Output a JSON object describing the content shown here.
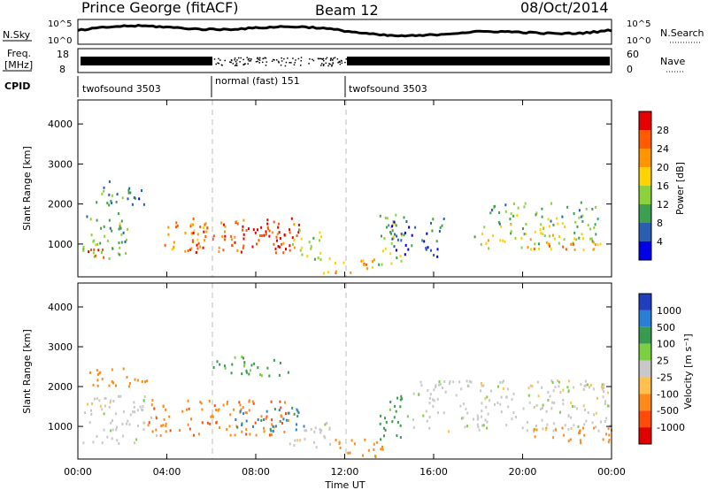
{
  "header": {
    "station": "Prince George (fitACF)",
    "beam": "Beam 12",
    "date": "08/Oct/2014"
  },
  "summary_panels": {
    "nsky": {
      "label": "N.Sky",
      "ticks": [
        "10^5",
        "10^0"
      ],
      "right_label": "N.Search",
      "right_ticks": [
        "10^5",
        "10^0"
      ]
    },
    "freq": {
      "label_lines": [
        "Freq.",
        "[MHz]"
      ],
      "ticks": [
        "18",
        "8"
      ],
      "right_label": "Nave",
      "right_ticks": [
        "60",
        "0"
      ]
    },
    "cpid": {
      "label": "CPID",
      "segments": [
        {
          "name": "twofsound 3503",
          "start_hour": 0
        },
        {
          "name": "normal (fast) 151",
          "start_hour": 6
        },
        {
          "name": "twofsound 3503",
          "start_hour": 12
        }
      ]
    }
  },
  "x_axis": {
    "label": "Time UT",
    "ticks": [
      "00:00",
      "04:00",
      "08:00",
      "12:00",
      "16:00",
      "20:00",
      "00:00"
    ],
    "tick_hours": [
      0,
      4,
      8,
      12,
      16,
      20,
      24
    ]
  },
  "chart_data": [
    {
      "type": "heatmap",
      "ylabel": "Slant Range [km]",
      "y_ticks": [
        1000,
        2000,
        3000,
        4000
      ],
      "ylim": [
        180,
        4600
      ],
      "xlim_hours": [
        0,
        24
      ],
      "colorbar": {
        "label": "Power [dB]",
        "ticks": [
          "28",
          "24",
          "20",
          "16",
          "12",
          "8",
          "4"
        ],
        "colors": [
          "#e60000",
          "#ff5a00",
          "#ff9600",
          "#ffd200",
          "#8cd23c",
          "#3ca050",
          "#2a5fb0",
          "#0000e6"
        ]
      },
      "regions": [
        {
          "t0": 0.2,
          "t1": 2.2,
          "r0": 550,
          "r1": 1800,
          "v": 12
        },
        {
          "t0": 0.3,
          "t1": 1.5,
          "r0": 650,
          "r1": 1000,
          "v": 26
        },
        {
          "t0": 0.5,
          "t1": 3.0,
          "r0": 2000,
          "r1": 2600,
          "v": 8
        },
        {
          "t0": 3.8,
          "t1": 5.8,
          "r0": 800,
          "r1": 1600,
          "v": 22
        },
        {
          "t0": 5.0,
          "t1": 10.0,
          "r0": 800,
          "r1": 1700,
          "v": 27
        },
        {
          "t0": 7.0,
          "t1": 9.5,
          "r0": 900,
          "r1": 1450,
          "v": 30
        },
        {
          "t0": 9.5,
          "t1": 11.0,
          "r0": 600,
          "r1": 1400,
          "v": 14
        },
        {
          "t0": 11.0,
          "t1": 13.5,
          "r0": 300,
          "r1": 700,
          "v": 20
        },
        {
          "t0": 13.5,
          "t1": 14.6,
          "r0": 500,
          "r1": 1900,
          "v": 16
        },
        {
          "t0": 14.0,
          "t1": 16.5,
          "r0": 700,
          "r1": 1700,
          "v": 6
        },
        {
          "t0": 17.8,
          "t1": 23.5,
          "r0": 900,
          "r1": 1500,
          "v": 16
        },
        {
          "t0": 20.0,
          "t1": 24.0,
          "r0": 800,
          "r1": 1050,
          "v": 22
        },
        {
          "t0": 18.5,
          "t1": 23.5,
          "r0": 1500,
          "r1": 2100,
          "v": 12
        }
      ]
    },
    {
      "type": "heatmap",
      "ylabel": "Slant Range [km]",
      "y_ticks": [
        1000,
        2000,
        3000,
        4000
      ],
      "ylim": [
        180,
        4600
      ],
      "xlim_hours": [
        0,
        24
      ],
      "colorbar": {
        "label": "Velocity [m s⁻¹]",
        "ticks": [
          "1000",
          "500",
          "100",
          "25",
          "-25",
          "-100",
          "-500",
          "-1000"
        ],
        "colors": [
          "#1f3fbf",
          "#2a7fd4",
          "#3a9a50",
          "#7ad040",
          "#c8c8c8",
          "#ffc14d",
          "#ff8a1a",
          "#ff4a0a",
          "#e00000"
        ]
      },
      "regions": [
        {
          "t0": 0.2,
          "t1": 3.5,
          "r0": 600,
          "r1": 1800,
          "v": 0
        },
        {
          "t0": 0.5,
          "t1": 3.2,
          "r0": 2000,
          "r1": 2500,
          "v": -300
        },
        {
          "t0": 3.0,
          "t1": 9.5,
          "r0": 800,
          "r1": 1700,
          "v": -400
        },
        {
          "t0": 7.0,
          "t1": 10.2,
          "r0": 900,
          "r1": 1500,
          "v": 600
        },
        {
          "t0": 9.5,
          "t1": 11.5,
          "r0": 500,
          "r1": 1200,
          "v": 0
        },
        {
          "t0": 11.5,
          "t1": 14.0,
          "r0": 250,
          "r1": 700,
          "v": -300
        },
        {
          "t0": 13.5,
          "t1": 14.8,
          "r0": 700,
          "r1": 1800,
          "v": 200
        },
        {
          "t0": 15.0,
          "t1": 24.0,
          "r0": 900,
          "r1": 2200,
          "v": 0
        },
        {
          "t0": 20.0,
          "t1": 24.0,
          "r0": 600,
          "r1": 1000,
          "v": -200
        },
        {
          "t0": 6.0,
          "t1": 9.5,
          "r0": 2300,
          "r1": 2800,
          "v": 150
        }
      ]
    }
  ]
}
